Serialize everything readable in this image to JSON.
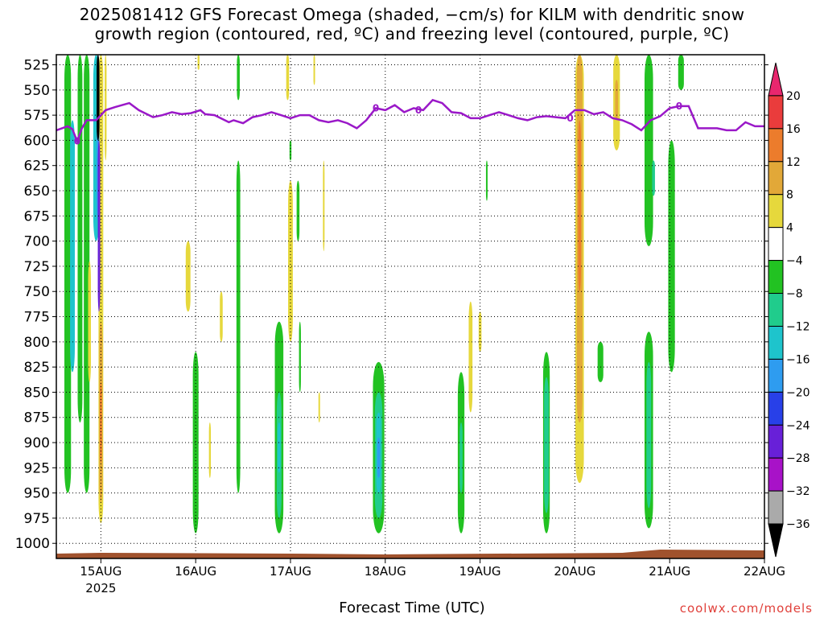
{
  "title_line1": "2025081412 GFS Forecast Omega (shaded, −cm/s) for KILM with dendritic snow",
  "title_line2": "growth region (contoured, red, ºC) and freezing level (contoured, purple, ºC)",
  "xlabel": "Forecast Time (UTC)",
  "credit": "coolwx.com/models",
  "chart_data": {
    "type": "heatmap",
    "yaxis_labels": [
      "525",
      "550",
      "575",
      "600",
      "625",
      "650",
      "675",
      "700",
      "725",
      "750",
      "775",
      "800",
      "825",
      "850",
      "875",
      "900",
      "925",
      "950",
      "975",
      "1000"
    ],
    "y_values": [
      525,
      550,
      575,
      600,
      625,
      650,
      675,
      700,
      725,
      750,
      775,
      800,
      825,
      850,
      875,
      900,
      925,
      950,
      975,
      1000
    ],
    "ylim": [
      515,
      1015
    ],
    "y_inverted": true,
    "xaxis_labels": [
      "15AUG",
      "16AUG",
      "17AUG",
      "18AUG",
      "19AUG",
      "20AUG",
      "21AUG",
      "22AUG"
    ],
    "xaxis_sublabel": "2025",
    "x_days": [
      0,
      1,
      2,
      3,
      4,
      5,
      6,
      7
    ],
    "xlim": [
      -0.47,
      7.0
    ],
    "grid": true,
    "colorbar": {
      "labels": [
        "20",
        "16",
        "12",
        "8",
        "4",
        "−4",
        "−8",
        "−12",
        "−16",
        "−20",
        "−24",
        "−28",
        "−32",
        "−36"
      ],
      "boundaries": [
        20,
        16,
        12,
        8,
        4,
        -4,
        -8,
        -12,
        -16,
        -20,
        -24,
        -28,
        -32,
        -36
      ],
      "colors": [
        "#e8276e",
        "#ea3c3c",
        "#ec7c2c",
        "#e2a838",
        "#e6d83c",
        "#ffffff",
        "#22c222",
        "#20cc8c",
        "#1ec4cc",
        "#2e9cf0",
        "#2840e8",
        "#6820d8",
        "#a812c8",
        "#aaaaaa",
        "#000000"
      ]
    },
    "freezing_level": {
      "color": "#9a18c8",
      "label": "0",
      "x": [
        -0.47,
        -0.35,
        -0.3,
        -0.25,
        -0.2,
        -0.15,
        -0.05,
        0.05,
        0.15,
        0.3,
        0.4,
        0.55,
        0.65,
        0.75,
        0.85,
        0.95,
        1.05,
        1.1,
        1.2,
        1.35,
        1.4,
        1.5,
        1.6,
        1.7,
        1.8,
        1.9,
        2.0,
        2.1,
        2.2,
        2.3,
        2.4,
        2.5,
        2.6,
        2.7,
        2.8,
        2.9,
        3.0,
        3.1,
        3.2,
        3.3,
        3.4,
        3.5,
        3.6,
        3.7,
        3.8,
        3.9,
        4.0,
        4.1,
        4.2,
        4.3,
        4.4,
        4.5,
        4.6,
        4.7,
        4.8,
        4.9,
        5.0,
        5.1,
        5.2,
        5.3,
        5.4,
        5.5,
        5.6,
        5.7,
        5.8,
        5.9,
        6.0,
        6.1,
        6.2,
        6.3,
        6.4,
        6.5,
        6.6,
        6.7,
        6.8,
        6.9,
        7.0
      ],
      "y": [
        590,
        586,
        589,
        601,
        588,
        580,
        580,
        570,
        567,
        563,
        570,
        577,
        575,
        572,
        574,
        573,
        570,
        574,
        575,
        582,
        580,
        583,
        577,
        575,
        572,
        575,
        578,
        575,
        575,
        580,
        582,
        580,
        583,
        588,
        580,
        568,
        570,
        565,
        572,
        568,
        570,
        560,
        563,
        572,
        573,
        578,
        578,
        575,
        572,
        575,
        578,
        580,
        577,
        576,
        577,
        578,
        570,
        570,
        574,
        572,
        578,
        580,
        584,
        590,
        580,
        576,
        568,
        566,
        566,
        588,
        588,
        588,
        590,
        590,
        582,
        586,
        586
      ]
    },
    "omega_regions": [
      {
        "cx": -0.35,
        "y0": 515,
        "y1": 950,
        "w": 0.07,
        "c": "#22c222"
      },
      {
        "cx": -0.3,
        "y0": 580,
        "y1": 830,
        "w": 0.05,
        "c": "#1ec4cc"
      },
      {
        "cx": -0.22,
        "y0": 515,
        "y1": 880,
        "w": 0.05,
        "c": "#22c222"
      },
      {
        "cx": -0.15,
        "y0": 515,
        "y1": 950,
        "w": 0.06,
        "c": "#22c222"
      },
      {
        "cx": -0.12,
        "y0": 720,
        "y1": 840,
        "w": 0.03,
        "c": "#e6d83c"
      },
      {
        "cx": -0.05,
        "y0": 515,
        "y1": 700,
        "w": 0.06,
        "c": "#1ec4cc"
      },
      {
        "cx": 0.0,
        "y0": 515,
        "y1": 980,
        "w": 0.05,
        "c": "#e6d83c"
      },
      {
        "cx": 0.0,
        "y0": 780,
        "y1": 960,
        "w": 0.035,
        "c": "#e2a838"
      },
      {
        "cx": 0.0,
        "y0": 840,
        "y1": 920,
        "w": 0.02,
        "c": "#ec7c2c"
      },
      {
        "cx": -0.03,
        "y0": 515,
        "y1": 680,
        "w": 0.03,
        "c": "#2e9cf0"
      },
      {
        "cx": -0.02,
        "y0": 600,
        "y1": 770,
        "w": 0.025,
        "c": "#6820d8"
      },
      {
        "cx": -0.03,
        "y0": 515,
        "y1": 600,
        "w": 0.03,
        "c": "#000000"
      },
      {
        "cx": 0.05,
        "y0": 515,
        "y1": 620,
        "w": 0.02,
        "c": "#e6d83c"
      },
      {
        "cx": 1.0,
        "y0": 810,
        "y1": 990,
        "w": 0.06,
        "c": "#22c222"
      },
      {
        "cx": 0.92,
        "y0": 700,
        "y1": 770,
        "w": 0.05,
        "c": "#e6d83c"
      },
      {
        "cx": 1.27,
        "y0": 750,
        "y1": 800,
        "w": 0.03,
        "c": "#e6d83c"
      },
      {
        "cx": 1.15,
        "y0": 880,
        "y1": 935,
        "w": 0.02,
        "c": "#e6d83c"
      },
      {
        "cx": 1.45,
        "y0": 620,
        "y1": 950,
        "w": 0.04,
        "c": "#22c222"
      },
      {
        "cx": 1.45,
        "y0": 515,
        "y1": 560,
        "w": 0.03,
        "c": "#22c222"
      },
      {
        "cx": 1.03,
        "y0": 515,
        "y1": 530,
        "w": 0.02,
        "c": "#e6d83c"
      },
      {
        "cx": 1.88,
        "y0": 780,
        "y1": 990,
        "w": 0.09,
        "c": "#22c222"
      },
      {
        "cx": 1.88,
        "y0": 850,
        "y1": 975,
        "w": 0.05,
        "c": "#20cc8c"
      },
      {
        "cx": 1.88,
        "y0": 880,
        "y1": 930,
        "w": 0.03,
        "c": "#1ec4cc"
      },
      {
        "cx": 2.0,
        "y0": 640,
        "y1": 800,
        "w": 0.05,
        "c": "#e6d83c"
      },
      {
        "cx": 2.08,
        "y0": 640,
        "y1": 700,
        "w": 0.03,
        "c": "#22c222"
      },
      {
        "cx": 2.1,
        "y0": 780,
        "y1": 850,
        "w": 0.02,
        "c": "#22c222"
      },
      {
        "cx": 1.97,
        "y0": 515,
        "y1": 560,
        "w": 0.03,
        "c": "#e6d83c"
      },
      {
        "cx": 2.35,
        "y0": 620,
        "y1": 710,
        "w": 0.015,
        "c": "#e6d83c"
      },
      {
        "cx": 2.3,
        "y0": 850,
        "y1": 880,
        "w": 0.01,
        "c": "#e6d83c"
      },
      {
        "cx": 2.25,
        "y0": 515,
        "y1": 545,
        "w": 0.015,
        "c": "#e6d83c"
      },
      {
        "cx": 2.0,
        "y0": 600,
        "y1": 620,
        "w": 0.02,
        "c": "#22c222"
      },
      {
        "cx": 2.93,
        "y0": 820,
        "y1": 990,
        "w": 0.12,
        "c": "#22c222"
      },
      {
        "cx": 2.93,
        "y0": 850,
        "y1": 975,
        "w": 0.08,
        "c": "#20cc8c"
      },
      {
        "cx": 2.93,
        "y0": 870,
        "y1": 950,
        "w": 0.05,
        "c": "#1ec4cc"
      },
      {
        "cx": 2.93,
        "y0": 895,
        "y1": 935,
        "w": 0.03,
        "c": "#2e9cf0"
      },
      {
        "cx": 3.8,
        "y0": 830,
        "y1": 990,
        "w": 0.07,
        "c": "#22c222"
      },
      {
        "cx": 3.8,
        "y0": 880,
        "y1": 950,
        "w": 0.03,
        "c": "#20cc8c"
      },
      {
        "cx": 3.9,
        "y0": 760,
        "y1": 870,
        "w": 0.04,
        "c": "#e6d83c"
      },
      {
        "cx": 4.0,
        "y0": 770,
        "y1": 810,
        "w": 0.03,
        "c": "#e6d83c"
      },
      {
        "cx": 4.07,
        "y0": 620,
        "y1": 660,
        "w": 0.015,
        "c": "#22c222"
      },
      {
        "cx": 4.7,
        "y0": 810,
        "y1": 990,
        "w": 0.07,
        "c": "#22c222"
      },
      {
        "cx": 4.7,
        "y0": 835,
        "y1": 970,
        "w": 0.05,
        "c": "#20cc8c"
      },
      {
        "cx": 5.05,
        "y0": 515,
        "y1": 940,
        "w": 0.09,
        "c": "#e6d83c"
      },
      {
        "cx": 5.05,
        "y0": 515,
        "y1": 880,
        "w": 0.06,
        "c": "#e2a838"
      },
      {
        "cx": 5.05,
        "y0": 580,
        "y1": 750,
        "w": 0.03,
        "c": "#ec7c2c"
      },
      {
        "cx": 5.44,
        "y0": 515,
        "y1": 610,
        "w": 0.07,
        "c": "#e6d83c"
      },
      {
        "cx": 5.44,
        "y0": 540,
        "y1": 580,
        "w": 0.03,
        "c": "#e2a838"
      },
      {
        "cx": 5.78,
        "y0": 515,
        "y1": 705,
        "w": 0.09,
        "c": "#22c222"
      },
      {
        "cx": 5.83,
        "y0": 620,
        "y1": 655,
        "w": 0.03,
        "c": "#20cc8c"
      },
      {
        "cx": 5.78,
        "y0": 790,
        "y1": 985,
        "w": 0.09,
        "c": "#22c222"
      },
      {
        "cx": 5.78,
        "y0": 820,
        "y1": 965,
        "w": 0.05,
        "c": "#20cc8c"
      },
      {
        "cx": 5.27,
        "y0": 800,
        "y1": 840,
        "w": 0.06,
        "c": "#22c222"
      },
      {
        "cx": 6.02,
        "y0": 600,
        "y1": 830,
        "w": 0.07,
        "c": "#22c222"
      },
      {
        "cx": 6.12,
        "y0": 515,
        "y1": 550,
        "w": 0.06,
        "c": "#22c222"
      }
    ]
  }
}
